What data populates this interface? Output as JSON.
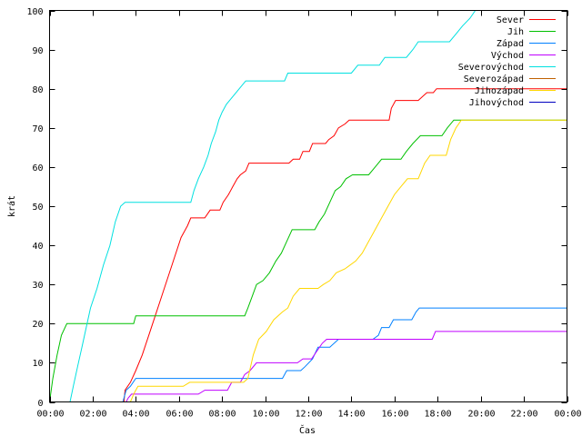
{
  "chart_data": {
    "type": "line",
    "title": "",
    "xlabel": "Čas",
    "ylabel": "krát",
    "xlim": [
      0,
      24
    ],
    "ylim": [
      0,
      100
    ],
    "grid": false,
    "legend_position": "top-right",
    "x_ticks": [
      {
        "value": 0,
        "label": "00:00"
      },
      {
        "value": 2,
        "label": "02:00"
      },
      {
        "value": 4,
        "label": "04:00"
      },
      {
        "value": 6,
        "label": "06:00"
      },
      {
        "value": 8,
        "label": "08:00"
      },
      {
        "value": 10,
        "label": "10:00"
      },
      {
        "value": 12,
        "label": "12:00"
      },
      {
        "value": 14,
        "label": "14:00"
      },
      {
        "value": 16,
        "label": "16:00"
      },
      {
        "value": 18,
        "label": "18:00"
      },
      {
        "value": 20,
        "label": "20:00"
      },
      {
        "value": 22,
        "label": "22:00"
      },
      {
        "value": 24,
        "label": "00:00"
      }
    ],
    "y_ticks": [
      {
        "value": 0,
        "label": "0"
      },
      {
        "value": 10,
        "label": "10"
      },
      {
        "value": 20,
        "label": "20"
      },
      {
        "value": 30,
        "label": "30"
      },
      {
        "value": 40,
        "label": "40"
      },
      {
        "value": 50,
        "label": "50"
      },
      {
        "value": 60,
        "label": "60"
      },
      {
        "value": 70,
        "label": "70"
      },
      {
        "value": 80,
        "label": "80"
      },
      {
        "value": 90,
        "label": "90"
      },
      {
        "value": 100,
        "label": "100"
      }
    ],
    "series": [
      {
        "name": "Sever",
        "color": "#ff0000",
        "points": [
          [
            3.45,
            0
          ],
          [
            3.5,
            3
          ],
          [
            3.75,
            5
          ],
          [
            4,
            8
          ],
          [
            4.3,
            12
          ],
          [
            4.6,
            17
          ],
          [
            4.9,
            22
          ],
          [
            5.2,
            27
          ],
          [
            5.5,
            32
          ],
          [
            5.8,
            37
          ],
          [
            6.1,
            42
          ],
          [
            6.4,
            45
          ],
          [
            6.55,
            47
          ],
          [
            7.2,
            47
          ],
          [
            7.45,
            49
          ],
          [
            7.9,
            49
          ],
          [
            8.05,
            51
          ],
          [
            8.3,
            53
          ],
          [
            8.5,
            55
          ],
          [
            8.7,
            57
          ],
          [
            8.85,
            58
          ],
          [
            9.1,
            59
          ],
          [
            9.25,
            61
          ],
          [
            11.1,
            61
          ],
          [
            11.3,
            62
          ],
          [
            11.6,
            62
          ],
          [
            11.75,
            64
          ],
          [
            12.05,
            64
          ],
          [
            12.2,
            66
          ],
          [
            12.8,
            66
          ],
          [
            12.95,
            67
          ],
          [
            13.2,
            68
          ],
          [
            13.4,
            70
          ],
          [
            13.7,
            71
          ],
          [
            13.9,
            72
          ],
          [
            15.75,
            72
          ],
          [
            15.85,
            75
          ],
          [
            16.05,
            77
          ],
          [
            17.1,
            77
          ],
          [
            17.3,
            78
          ],
          [
            17.5,
            79
          ],
          [
            17.8,
            79
          ],
          [
            17.95,
            80
          ],
          [
            24,
            80
          ]
        ]
      },
      {
        "name": "Jih",
        "color": "#00c000",
        "points": [
          [
            0,
            0
          ],
          [
            0.15,
            6
          ],
          [
            0.35,
            12
          ],
          [
            0.55,
            17
          ],
          [
            0.8,
            20
          ],
          [
            3.9,
            20
          ],
          [
            4.0,
            22
          ],
          [
            9.05,
            22
          ],
          [
            9.2,
            24
          ],
          [
            9.4,
            27
          ],
          [
            9.6,
            30
          ],
          [
            9.9,
            31
          ],
          [
            10.2,
            33
          ],
          [
            10.5,
            36
          ],
          [
            10.75,
            38
          ],
          [
            11,
            41
          ],
          [
            11.25,
            44
          ],
          [
            11.55,
            44
          ],
          [
            12.3,
            44
          ],
          [
            12.5,
            46
          ],
          [
            12.75,
            48
          ],
          [
            13.0,
            51
          ],
          [
            13.25,
            54
          ],
          [
            13.5,
            55
          ],
          [
            13.75,
            57
          ],
          [
            14.05,
            58
          ],
          [
            14.8,
            58
          ],
          [
            15.1,
            60
          ],
          [
            15.4,
            62
          ],
          [
            16.3,
            62
          ],
          [
            16.55,
            64
          ],
          [
            16.85,
            66
          ],
          [
            17.2,
            68
          ],
          [
            18.2,
            68
          ],
          [
            18.45,
            70
          ],
          [
            18.75,
            72
          ],
          [
            24,
            72
          ]
        ]
      },
      {
        "name": "Západ",
        "color": "#0080ff",
        "points": [
          [
            3.4,
            0
          ],
          [
            3.55,
            3
          ],
          [
            3.75,
            4
          ],
          [
            4.0,
            6
          ],
          [
            10.8,
            6
          ],
          [
            11.0,
            8
          ],
          [
            11.65,
            8
          ],
          [
            11.85,
            9
          ],
          [
            12.2,
            11
          ],
          [
            12.45,
            14
          ],
          [
            13.0,
            14
          ],
          [
            13.4,
            16
          ],
          [
            15.0,
            16
          ],
          [
            15.25,
            17
          ],
          [
            15.4,
            19
          ],
          [
            15.75,
            19
          ],
          [
            15.95,
            21
          ],
          [
            16.8,
            21
          ],
          [
            17.0,
            23
          ],
          [
            17.15,
            24
          ],
          [
            24,
            24
          ]
        ]
      },
      {
        "name": "Východ",
        "color": "#c000ff",
        "points": [
          [
            3.55,
            0
          ],
          [
            3.65,
            1
          ],
          [
            3.8,
            2
          ],
          [
            6.9,
            2
          ],
          [
            7.2,
            3
          ],
          [
            8.25,
            3
          ],
          [
            8.45,
            5
          ],
          [
            8.85,
            5
          ],
          [
            9.05,
            7
          ],
          [
            9.3,
            8
          ],
          [
            9.6,
            10
          ],
          [
            11.5,
            10
          ],
          [
            11.75,
            11
          ],
          [
            12.15,
            11
          ],
          [
            12.4,
            13
          ],
          [
            12.65,
            15
          ],
          [
            12.85,
            16
          ],
          [
            17.75,
            16
          ],
          [
            17.9,
            18
          ],
          [
            24,
            18
          ]
        ]
      },
      {
        "name": "Severovýchod",
        "color": "#00e0e0",
        "points": [
          [
            0.95,
            0
          ],
          [
            1.1,
            4
          ],
          [
            1.3,
            9
          ],
          [
            1.5,
            14
          ],
          [
            1.7,
            19
          ],
          [
            1.9,
            24
          ],
          [
            2.2,
            29
          ],
          [
            2.5,
            35
          ],
          [
            2.8,
            40
          ],
          [
            3.05,
            46
          ],
          [
            3.3,
            50
          ],
          [
            3.5,
            51
          ],
          [
            6.55,
            51
          ],
          [
            6.7,
            54
          ],
          [
            6.9,
            57
          ],
          [
            7.15,
            60
          ],
          [
            7.35,
            63
          ],
          [
            7.5,
            66
          ],
          [
            7.7,
            69
          ],
          [
            7.85,
            72
          ],
          [
            8.0,
            74
          ],
          [
            8.2,
            76
          ],
          [
            8.5,
            78
          ],
          [
            8.8,
            80
          ],
          [
            9.1,
            82
          ],
          [
            10.9,
            82
          ],
          [
            11.05,
            84
          ],
          [
            14.0,
            84
          ],
          [
            14.3,
            86
          ],
          [
            15.3,
            86
          ],
          [
            15.55,
            88
          ],
          [
            16.55,
            88
          ],
          [
            16.85,
            90
          ],
          [
            17.1,
            92
          ],
          [
            18.55,
            92
          ],
          [
            18.85,
            94
          ],
          [
            19.15,
            96
          ],
          [
            19.5,
            98
          ],
          [
            19.75,
            100
          ]
        ]
      },
      {
        "name": "Severozápad",
        "color": "#c06000",
        "points": []
      },
      {
        "name": "Jihozápad",
        "color": "#ffd700",
        "points": [
          [
            3.75,
            0
          ],
          [
            3.9,
            2
          ],
          [
            4.1,
            4
          ],
          [
            6.2,
            4
          ],
          [
            6.5,
            5
          ],
          [
            9.0,
            5
          ],
          [
            9.2,
            6
          ],
          [
            9.45,
            12
          ],
          [
            9.7,
            16
          ],
          [
            10.05,
            18
          ],
          [
            10.4,
            21
          ],
          [
            10.8,
            23
          ],
          [
            11.05,
            24
          ],
          [
            11.3,
            27
          ],
          [
            11.6,
            29
          ],
          [
            12.45,
            29
          ],
          [
            12.7,
            30
          ],
          [
            13.0,
            31
          ],
          [
            13.3,
            33
          ],
          [
            13.7,
            34
          ],
          [
            14.2,
            36
          ],
          [
            14.5,
            38
          ],
          [
            14.8,
            41
          ],
          [
            15.1,
            44
          ],
          [
            15.4,
            47
          ],
          [
            15.7,
            50
          ],
          [
            16.0,
            53
          ],
          [
            16.3,
            55
          ],
          [
            16.6,
            57
          ],
          [
            17.1,
            57
          ],
          [
            17.4,
            61
          ],
          [
            17.65,
            63
          ],
          [
            18.4,
            63
          ],
          [
            18.6,
            67
          ],
          [
            18.85,
            70
          ],
          [
            19.1,
            72
          ],
          [
            24,
            72
          ]
        ]
      },
      {
        "name": "Jihovýchod",
        "color": "#0000c0",
        "points": []
      }
    ]
  }
}
